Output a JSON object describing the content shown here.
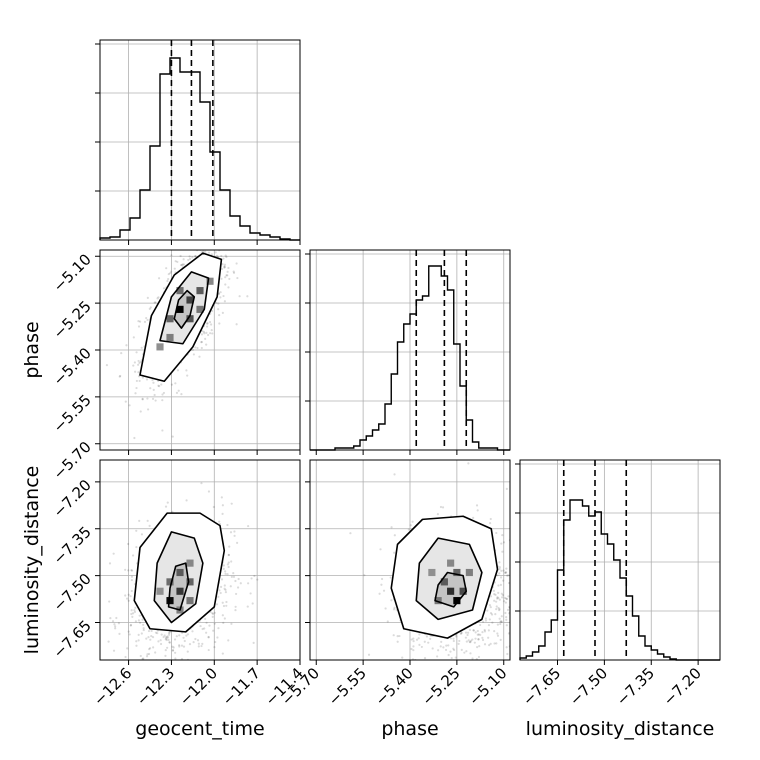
{
  "chart_data": {
    "type": "corner",
    "title": "",
    "parameters": [
      {
        "name": "geocent_time",
        "range": [
          -12.8,
          -11.4
        ],
        "ticks": [
          -12.6,
          -12.3,
          -12.0,
          -11.7,
          -11.4
        ],
        "tick_labels": [
          "−12.6",
          "−12.3",
          "−12.0",
          "−11.7",
          "−11.4"
        ],
        "quantiles": [
          -12.3,
          -12.16,
          -12.01
        ],
        "histogram": {
          "bin_edges": [
            -12.8,
            -12.73,
            -12.66,
            -12.59,
            -12.52,
            -12.45,
            -12.38,
            -12.31,
            -12.24,
            -12.17,
            -12.1,
            -12.03,
            -11.96,
            -11.89,
            -11.82,
            -11.75,
            -11.68,
            -11.61,
            -11.54,
            -11.47,
            -11.4
          ],
          "counts": [
            0.01,
            0.015,
            0.05,
            0.11,
            0.25,
            0.47,
            0.83,
            0.91,
            0.84,
            0.84,
            0.69,
            0.44,
            0.25,
            0.12,
            0.07,
            0.035,
            0.025,
            0.015,
            0.005,
            0.0
          ]
        }
      },
      {
        "name": "phase",
        "range": [
          -5.72,
          -5.08
        ],
        "ticks": [
          -5.7,
          -5.55,
          -5.4,
          -5.25,
          -5.1
        ],
        "tick_labels": [
          "−5.70",
          "−5.55",
          "−5.40",
          "−5.25",
          "−5.10"
        ],
        "quantiles": [
          -5.38,
          -5.29,
          -5.22
        ],
        "histogram": {
          "bin_edges": [
            -5.72,
            -5.7,
            -5.68,
            -5.66,
            -5.64,
            -5.62,
            -5.6,
            -5.58,
            -5.56,
            -5.54,
            -5.52,
            -5.5,
            -5.48,
            -5.46,
            -5.44,
            -5.42,
            -5.4,
            -5.38,
            -5.36,
            -5.34,
            -5.32,
            -5.3,
            -5.28,
            -5.26,
            -5.24,
            -5.22,
            -5.2,
            -5.18,
            -5.16,
            -5.14,
            -5.12,
            -5.1,
            -5.08
          ],
          "counts": [
            0,
            0,
            0,
            0,
            0.01,
            0.01,
            0.01,
            0.02,
            0.05,
            0.07,
            0.1,
            0.13,
            0.23,
            0.38,
            0.54,
            0.63,
            0.68,
            0.75,
            0.77,
            0.92,
            0.92,
            0.87,
            0.8,
            0.53,
            0.32,
            0.15,
            0.04,
            0.01,
            0.01,
            0.01,
            0,
            0
          ]
        }
      },
      {
        "name": "luminosity_distance",
        "range": [
          -7.77,
          -7.13
        ],
        "ticks": [
          -7.65,
          -7.5,
          -7.35,
          -7.2
        ],
        "tick_labels": [
          "−7.65",
          "−7.50",
          "−7.35",
          "−7.20"
        ],
        "quantiles": [
          -7.63,
          -7.53,
          -7.43
        ],
        "histogram": {
          "bin_edges": [
            -7.77,
            -7.75,
            -7.73,
            -7.71,
            -7.69,
            -7.67,
            -7.65,
            -7.63,
            -7.61,
            -7.59,
            -7.57,
            -7.55,
            -7.53,
            -7.51,
            -7.49,
            -7.47,
            -7.45,
            -7.43,
            -7.41,
            -7.39,
            -7.37,
            -7.35,
            -7.33,
            -7.31,
            -7.29,
            -7.27,
            -7.25,
            -7.23,
            -7.21,
            -7.19,
            -7.17,
            -7.15,
            -7.13
          ],
          "counts": [
            0.01,
            0.02,
            0.04,
            0.07,
            0.14,
            0.2,
            0.45,
            0.7,
            0.8,
            0.8,
            0.77,
            0.72,
            0.74,
            0.63,
            0.58,
            0.5,
            0.41,
            0.32,
            0.22,
            0.12,
            0.07,
            0.05,
            0.03,
            0.015,
            0.005,
            0,
            0,
            0,
            0,
            0,
            0,
            0
          ]
        }
      }
    ],
    "pairs": [
      {
        "x": "geocent_time",
        "y": "phase",
        "center": [
          -12.2,
          -5.27
        ],
        "contours": [
          {
            "level": 1,
            "points": [
              [
                -12.28,
                -5.3
              ],
              [
                -12.25,
                -5.24
              ],
              [
                -12.19,
                -5.21
              ],
              [
                -12.14,
                -5.23
              ],
              [
                -12.17,
                -5.29
              ],
              [
                -12.23,
                -5.33
              ]
            ]
          },
          {
            "level": 2,
            "points": [
              [
                -12.38,
                -5.37
              ],
              [
                -12.3,
                -5.23
              ],
              [
                -12.16,
                -5.15
              ],
              [
                -12.04,
                -5.17
              ],
              [
                -12.07,
                -5.27
              ],
              [
                -12.22,
                -5.38
              ]
            ]
          },
          {
            "level": 3,
            "points": [
              [
                -12.52,
                -5.48
              ],
              [
                -12.44,
                -5.29
              ],
              [
                -12.28,
                -5.16
              ],
              [
                -12.08,
                -5.09
              ],
              [
                -11.95,
                -5.11
              ],
              [
                -11.98,
                -5.23
              ],
              [
                -12.15,
                -5.39
              ],
              [
                -12.35,
                -5.5
              ]
            ]
          }
        ],
        "density_cells": [
          [
            -12.24,
            -5.27,
            1.0
          ],
          [
            -12.17,
            -5.24,
            0.65
          ],
          [
            -12.17,
            -5.3,
            0.55
          ],
          [
            -12.1,
            -5.21,
            0.5
          ],
          [
            -12.31,
            -5.3,
            0.45
          ],
          [
            -12.24,
            -5.21,
            0.4
          ],
          [
            -12.1,
            -5.27,
            0.35
          ],
          [
            -12.31,
            -5.36,
            0.3
          ],
          [
            -12.03,
            -5.18,
            0.25
          ],
          [
            -12.38,
            -5.39,
            0.2
          ]
        ]
      },
      {
        "x": "geocent_time",
        "y": "luminosity_distance",
        "center": [
          -12.25,
          -7.56
        ],
        "contours": [
          {
            "level": 1,
            "points": [
              [
                -12.32,
                -7.6
              ],
              [
                -12.24,
                -7.61
              ],
              [
                -12.18,
                -7.52
              ],
              [
                -12.2,
                -7.46
              ],
              [
                -12.27,
                -7.47
              ],
              [
                -12.31,
                -7.54
              ]
            ]
          },
          {
            "level": 2,
            "points": [
              [
                -12.42,
                -7.58
              ],
              [
                -12.3,
                -7.65
              ],
              [
                -12.13,
                -7.59
              ],
              [
                -12.08,
                -7.46
              ],
              [
                -12.14,
                -7.38
              ],
              [
                -12.3,
                -7.36
              ],
              [
                -12.4,
                -7.46
              ]
            ]
          },
          {
            "level": 3,
            "points": [
              [
                -12.56,
                -7.58
              ],
              [
                -12.45,
                -7.67
              ],
              [
                -12.2,
                -7.68
              ],
              [
                -12.0,
                -7.6
              ],
              [
                -11.93,
                -7.42
              ],
              [
                -11.96,
                -7.34
              ],
              [
                -12.1,
                -7.3
              ],
              [
                -12.33,
                -7.3
              ],
              [
                -12.52,
                -7.41
              ]
            ]
          }
        ],
        "density_cells": [
          [
            -12.31,
            -7.58,
            0.95
          ],
          [
            -12.24,
            -7.55,
            0.7
          ],
          [
            -12.24,
            -7.49,
            0.5
          ],
          [
            -12.17,
            -7.52,
            0.45
          ],
          [
            -12.31,
            -7.52,
            0.4
          ],
          [
            -12.17,
            -7.58,
            0.35
          ],
          [
            -12.24,
            -7.61,
            0.3
          ],
          [
            -12.17,
            -7.46,
            0.25
          ],
          [
            -12.38,
            -7.55,
            0.2
          ]
        ]
      },
      {
        "x": "phase",
        "y": "luminosity_distance",
        "center": [
          -5.25,
          -7.56
        ],
        "contours": [
          {
            "level": 1,
            "points": [
              [
                -5.32,
                -7.58
              ],
              [
                -5.26,
                -7.6
              ],
              [
                -5.22,
                -7.55
              ],
              [
                -5.23,
                -7.5
              ],
              [
                -5.28,
                -7.49
              ],
              [
                -5.31,
                -7.53
              ]
            ]
          },
          {
            "level": 2,
            "points": [
              [
                -5.38,
                -7.58
              ],
              [
                -5.31,
                -7.64
              ],
              [
                -5.2,
                -7.61
              ],
              [
                -5.17,
                -7.49
              ],
              [
                -5.21,
                -7.4
              ],
              [
                -5.31,
                -7.38
              ],
              [
                -5.37,
                -7.46
              ]
            ]
          },
          {
            "level": 3,
            "points": [
              [
                -5.46,
                -7.54
              ],
              [
                -5.42,
                -7.67
              ],
              [
                -5.28,
                -7.7
              ],
              [
                -5.17,
                -7.64
              ],
              [
                -5.12,
                -7.48
              ],
              [
                -5.14,
                -7.35
              ],
              [
                -5.23,
                -7.31
              ],
              [
                -5.36,
                -7.32
              ],
              [
                -5.44,
                -7.4
              ]
            ]
          }
        ],
        "density_cells": [
          [
            -5.25,
            -7.58,
            1.0
          ],
          [
            -5.27,
            -7.55,
            0.75
          ],
          [
            -5.23,
            -7.55,
            0.6
          ],
          [
            -5.29,
            -7.52,
            0.5
          ],
          [
            -5.25,
            -7.49,
            0.45
          ],
          [
            -5.31,
            -7.58,
            0.35
          ],
          [
            -5.21,
            -7.49,
            0.3
          ],
          [
            -5.27,
            -7.46,
            0.25
          ],
          [
            -5.33,
            -7.49,
            0.2
          ]
        ]
      }
    ],
    "grid": true,
    "legend": "none"
  }
}
